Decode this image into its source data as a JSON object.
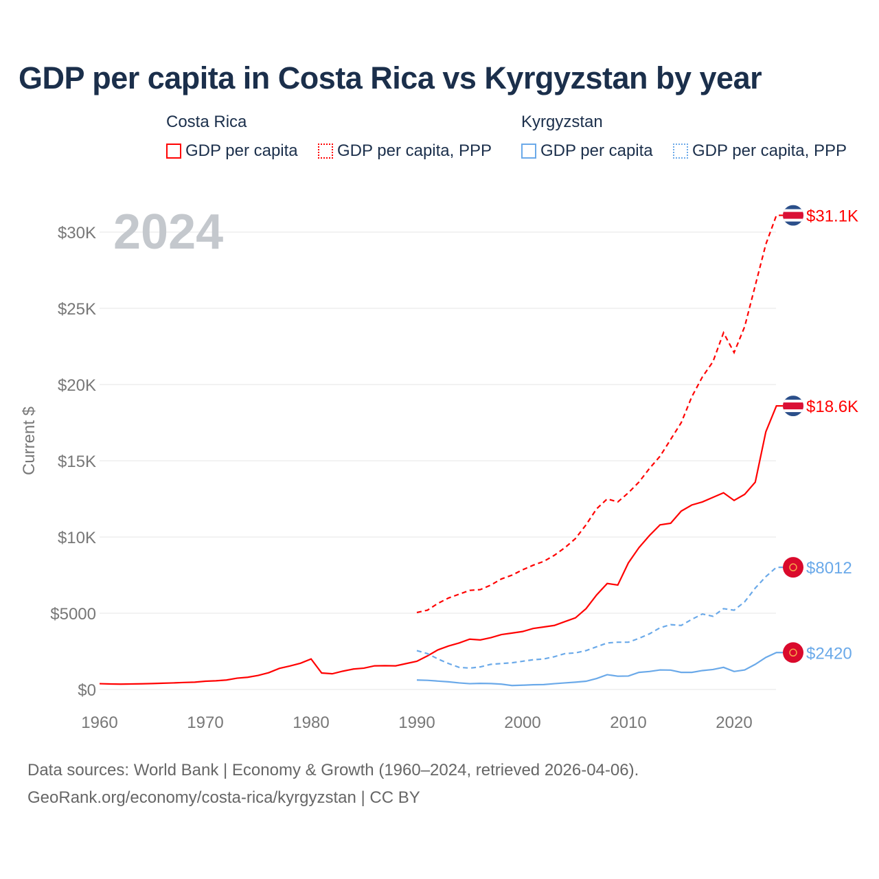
{
  "title": "GDP per capita in Costa Rica vs Kyrgyzstan by year",
  "legend": {
    "groups": [
      {
        "name": "Costa Rica",
        "items": [
          "GDP per capita",
          "GDP per capita, PPP"
        ],
        "color": "#ff0000"
      },
      {
        "name": "Kyrgyzstan",
        "items": [
          "GDP per capita",
          "GDP per capita, PPP"
        ],
        "color": "#6aa9e9"
      }
    ]
  },
  "year_watermark": "2024",
  "footer": {
    "line1": "Data sources: World Bank | Economy & Growth (1960–2024, retrieved 2026-04-06).",
    "line2": "GeoRank.org/economy/costa-rica/kyrgyzstan | CC BY"
  },
  "chart_data": {
    "type": "line",
    "title": "GDP per capita in Costa Rica vs Kyrgyzstan by year",
    "xlabel": "",
    "ylabel": "Current $",
    "xlim": [
      1960,
      2024
    ],
    "ylim": [
      0,
      32000
    ],
    "x_ticks": [
      1960,
      1970,
      1980,
      1990,
      2000,
      2010,
      2020
    ],
    "x_tick_labels": [
      "1960",
      "1970",
      "1980",
      "1990",
      "2000",
      "2010",
      "2020"
    ],
    "y_ticks": [
      0,
      5000,
      10000,
      15000,
      20000,
      25000,
      30000
    ],
    "y_tick_labels": [
      "$0",
      "$5000",
      "$10K",
      "$15K",
      "$20K",
      "$25K",
      "$30K"
    ],
    "grid": true,
    "series": [
      {
        "name": "Costa Rica GDP per capita",
        "color": "#ff0000",
        "dash": false,
        "start": 1960,
        "end_label": "$18.6K",
        "flag": "costa-rica",
        "values": [
          380,
          360,
          350,
          360,
          370,
          390,
          410,
          430,
          460,
          480,
          540,
          570,
          620,
          740,
          800,
          920,
          1100,
          1380,
          1540,
          1720,
          2000,
          1080,
          1030,
          1200,
          1340,
          1400,
          1550,
          1560,
          1550,
          1700,
          1850,
          2200,
          2600,
          2850,
          3050,
          3300,
          3250,
          3400,
          3600,
          3700,
          3800,
          4000,
          4100,
          4200,
          4450,
          4700,
          5300,
          6200,
          6950,
          6850,
          8300,
          9300,
          10100,
          10800,
          10900,
          11700,
          12100,
          12300,
          12600,
          12900,
          12400,
          12800,
          13600,
          16900,
          18600
        ]
      },
      {
        "name": "Costa Rica GDP per capita, PPP",
        "color": "#ff0000",
        "dash": true,
        "start": 1990,
        "end_label": "$31.1K",
        "flag": "costa-rica",
        "values": [
          5050,
          5200,
          5650,
          6000,
          6250,
          6500,
          6550,
          6850,
          7250,
          7500,
          7850,
          8150,
          8400,
          8800,
          9300,
          9900,
          10800,
          11850,
          12500,
          12300,
          12900,
          13600,
          14500,
          15300,
          16400,
          17500,
          19200,
          20500,
          21500,
          23400,
          22100,
          23800,
          26500,
          29200,
          31100
        ]
      },
      {
        "name": "Kyrgyzstan GDP per capita",
        "color": "#6aa9e9",
        "dash": false,
        "start": 1990,
        "end_label": "$2420",
        "flag": "kyrgyzstan",
        "values": [
          620,
          600,
          550,
          500,
          430,
          380,
          400,
          390,
          350,
          260,
          280,
          310,
          320,
          380,
          430,
          480,
          540,
          720,
          970,
          870,
          880,
          1120,
          1180,
          1280,
          1270,
          1120,
          1120,
          1240,
          1310,
          1450,
          1180,
          1280,
          1650,
          2100,
          2420
        ]
      },
      {
        "name": "Kyrgyzstan GDP per capita, PPP",
        "color": "#6aa9e9",
        "dash": true,
        "start": 1990,
        "end_label": "$8012",
        "flag": "kyrgyzstan",
        "values": [
          2550,
          2350,
          2000,
          1700,
          1450,
          1400,
          1480,
          1650,
          1700,
          1750,
          1850,
          1950,
          2000,
          2150,
          2350,
          2400,
          2550,
          2800,
          3050,
          3100,
          3100,
          3350,
          3650,
          4050,
          4250,
          4200,
          4600,
          4950,
          4800,
          5300,
          5200,
          5750,
          6650,
          7400,
          8012
        ]
      }
    ]
  }
}
